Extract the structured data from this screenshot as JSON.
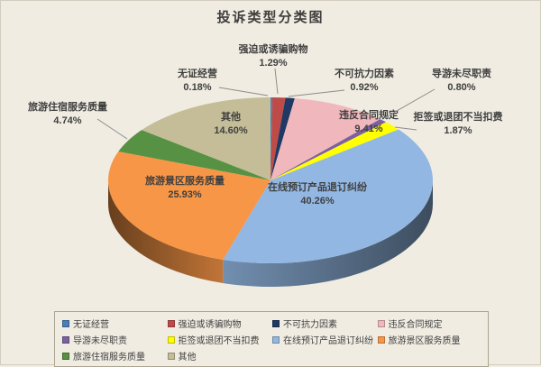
{
  "title": "投诉类型分类图",
  "chart_data": {
    "type": "pie",
    "style": "3d",
    "title": "投诉类型分类图",
    "categories": [
      "无证经营",
      "强迫或诱骗购物",
      "不可抗力因素",
      "违反合同规定",
      "导游未尽职责",
      "拒签或退团不当扣费",
      "在线预订产品退订纠纷",
      "旅游景区服务质量",
      "旅游住宿服务质量",
      "其他"
    ],
    "values": [
      0.18,
      1.29,
      0.92,
      9.41,
      0.8,
      1.87,
      40.26,
      25.93,
      4.74,
      14.6
    ],
    "unit": "%",
    "colors": [
      "#4A7EBB",
      "#BE4B48",
      "#1F3864",
      "#F0B8BC",
      "#7D60A0",
      "#FFFF00",
      "#92B7E2",
      "#F79646",
      "#579143",
      "#C4BD97"
    ],
    "legend_position": "bottom",
    "labels": "category name + percentage with 2 decimals, leader lines for small slices"
  },
  "colors": {
    "background": "#F0ECE2",
    "text": "#3F3F3F",
    "leader_line": "#8C8C8C",
    "legend_border": "#ABA493"
  }
}
